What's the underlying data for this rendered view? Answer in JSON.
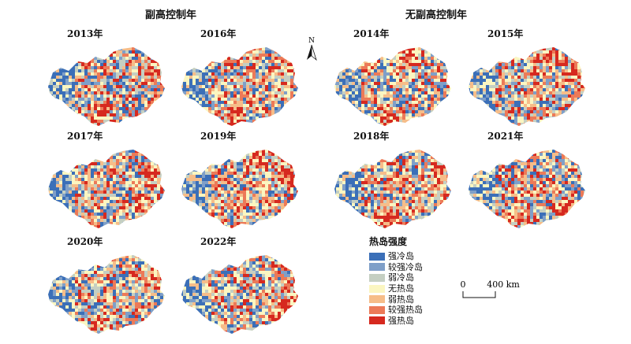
{
  "groups": {
    "left": "副高控制年",
    "right": "无副高控制年"
  },
  "panels": [
    {
      "id": "p2013",
      "year": "2013年",
      "hotspots": [
        "ne",
        "s"
      ]
    },
    {
      "id": "p2016",
      "year": "2016年",
      "hotspots": [
        "ne",
        "s"
      ]
    },
    {
      "id": "p2014",
      "year": "2014年",
      "hotspots": [
        "n",
        "s"
      ]
    },
    {
      "id": "p2015",
      "year": "2015年",
      "hotspots": [
        "n",
        "ne"
      ]
    },
    {
      "id": "p2017",
      "year": "2017年",
      "hotspots": [
        "ne",
        "se"
      ]
    },
    {
      "id": "p2019",
      "year": "2019年",
      "hotspots": [
        "n",
        "ne"
      ]
    },
    {
      "id": "p2018",
      "year": "2018年",
      "hotspots": [
        "ne",
        "s"
      ]
    },
    {
      "id": "p2021",
      "year": "2021年",
      "hotspots": [
        "se",
        "s"
      ]
    },
    {
      "id": "p2020",
      "year": "2020年",
      "hotspots": [
        "ne",
        "s"
      ]
    },
    {
      "id": "p2022",
      "year": "2022年",
      "hotspots": [
        "se",
        "e"
      ]
    }
  ],
  "north_arrow": "N",
  "legend": {
    "title": "热岛强度",
    "items": [
      {
        "label": "强冷岛",
        "color": "#3b6fb8"
      },
      {
        "label": "较强冷岛",
        "color": "#7f9fc8"
      },
      {
        "label": "弱冷岛",
        "color": "#c5cfc2"
      },
      {
        "label": "无热岛",
        "color": "#fbf6c1"
      },
      {
        "label": "弱热岛",
        "color": "#f6bd89"
      },
      {
        "label": "较强热岛",
        "color": "#ec7a58"
      },
      {
        "label": "强热岛",
        "color": "#d6291f"
      }
    ]
  },
  "scale": {
    "start": "0",
    "end": "400 km"
  }
}
